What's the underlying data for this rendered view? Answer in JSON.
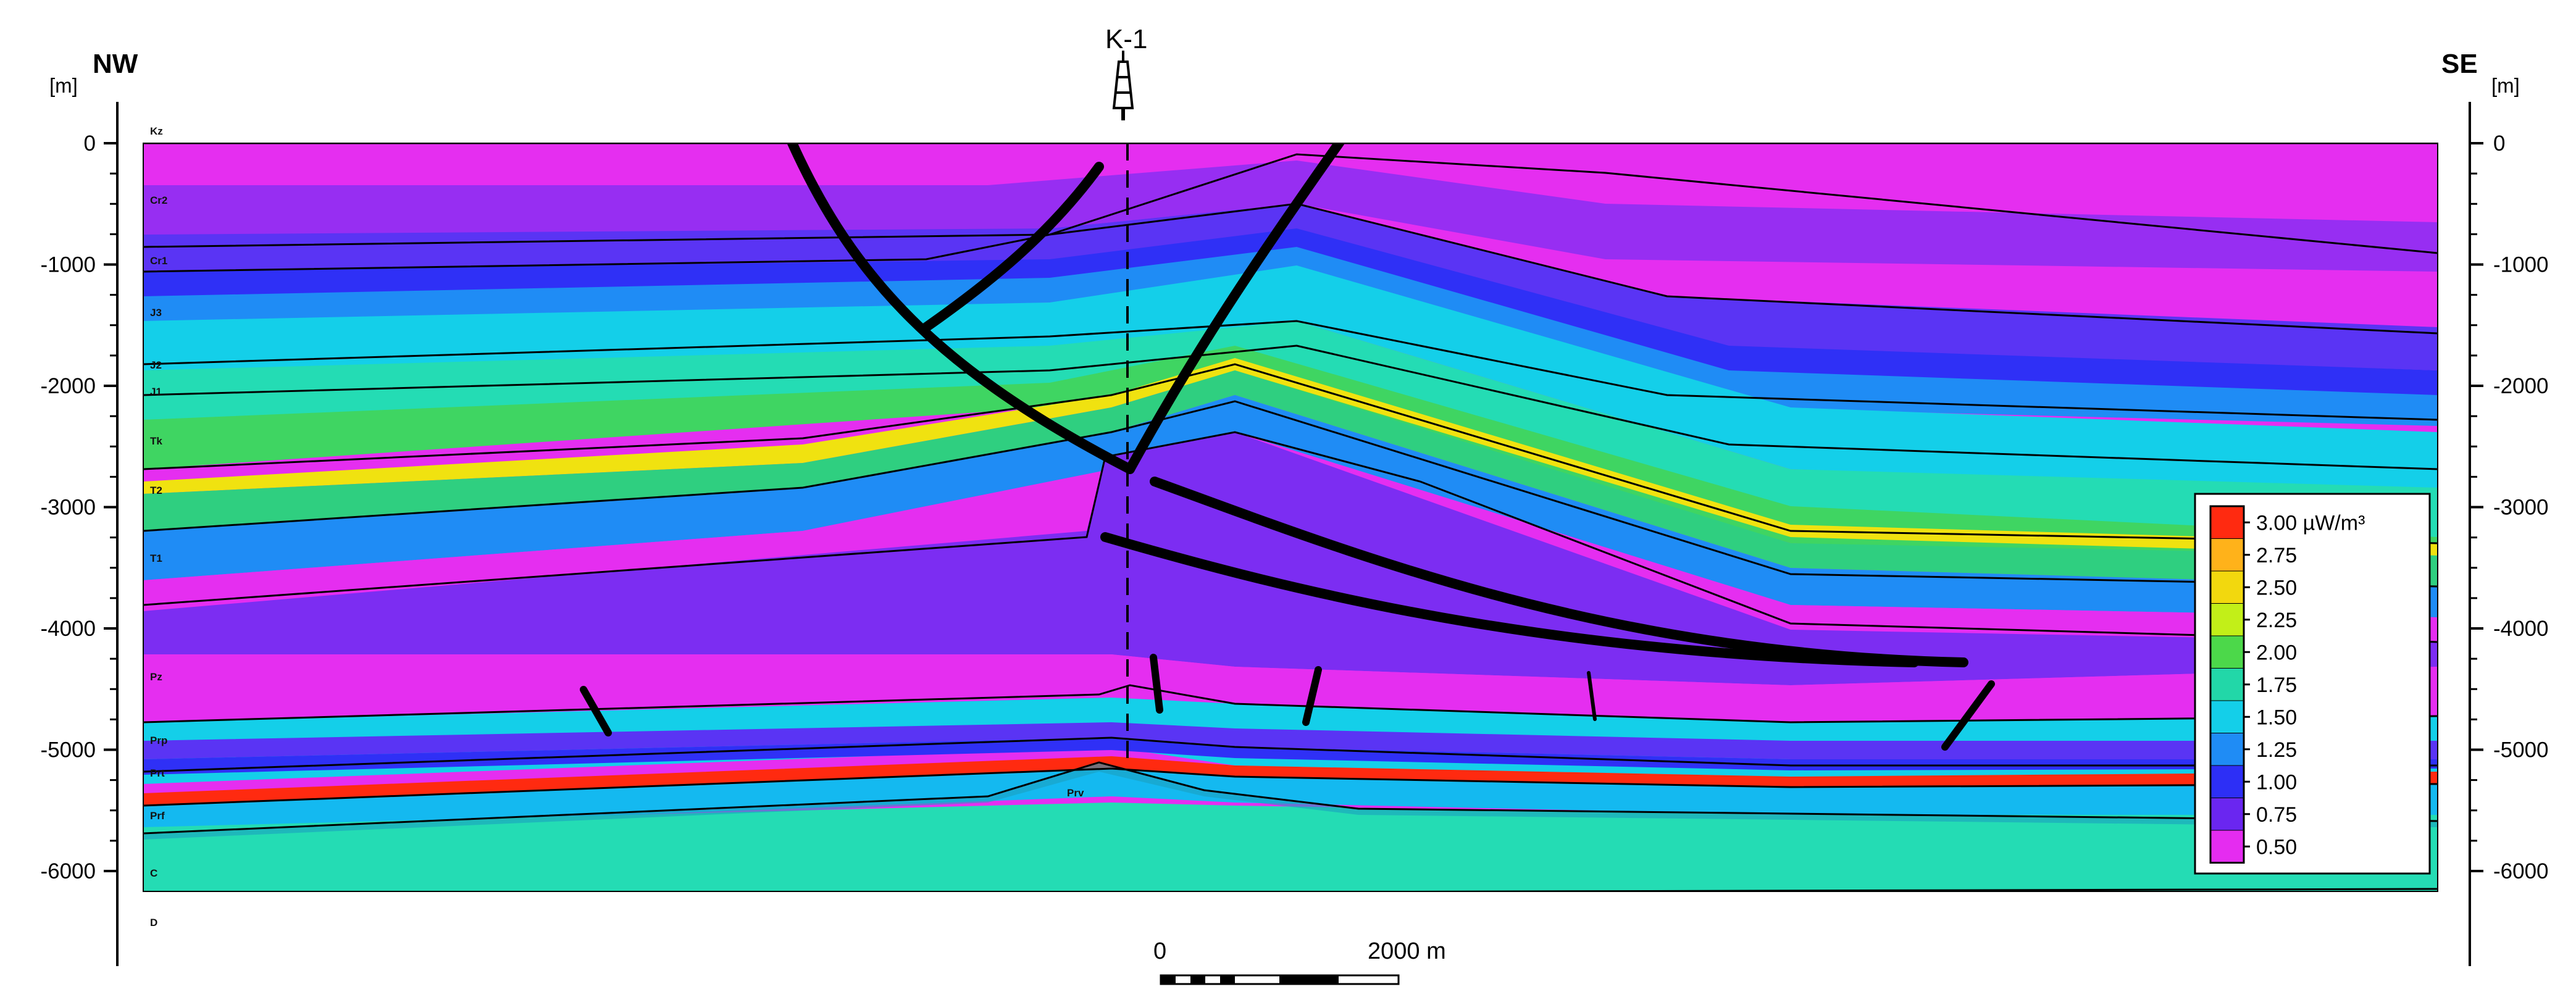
{
  "figure": {
    "left_direction": "NW",
    "right_direction": "SE",
    "well_name": "K-1",
    "depth_unit": "[m]",
    "depth_ticks": [
      "0",
      "-1000",
      "-2000",
      "-3000",
      "-4000",
      "-5000",
      "-6000"
    ],
    "strat_units": [
      "Kz",
      "Cr2",
      "Cr1",
      "J3",
      "J2",
      "J1",
      "Tk",
      "T2",
      "T1",
      "Pz",
      "Prp",
      "Prt",
      "Prf",
      "Prv",
      "C",
      "D"
    ]
  },
  "legend": {
    "entries": [
      "3.00 µW/m³",
      "2.75",
      "2.50",
      "2.25",
      "2.00",
      "1.75",
      "1.50",
      "1.25",
      "1.00",
      "0.75",
      "0.50"
    ],
    "colors": [
      "#ff2a10",
      "#ffb21a",
      "#f2d80e",
      "#c2ef18",
      "#4cd84a",
      "#22d7a8",
      "#14cfe9",
      "#1f8cf5",
      "#2d2ff6",
      "#6a26f0",
      "#e52cf0"
    ]
  },
  "scale_bar": {
    "start_label": "0",
    "end_label": "2000 m"
  },
  "colors": {
    "magenta": "#e52ef0",
    "violet": "#7c2df2",
    "blue": "#2f30f6",
    "cyan": "#12d0ea",
    "teal": "#24dcb4",
    "green": "#3fd562",
    "yellow": "#f0e210",
    "red": "#ff2a10"
  }
}
